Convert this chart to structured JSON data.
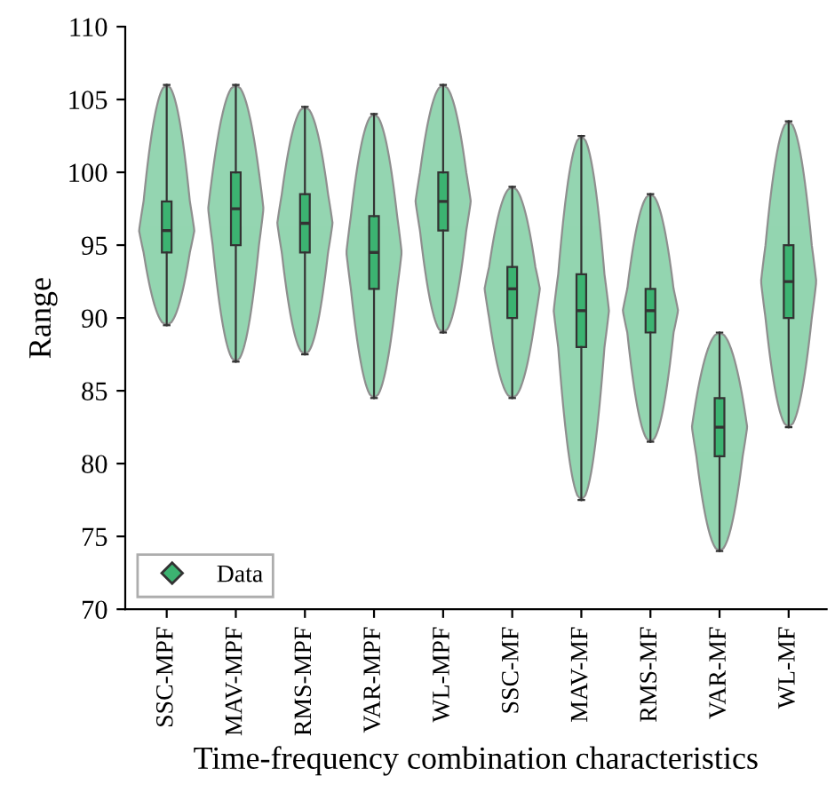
{
  "chart_data": {
    "type": "box",
    "xlabel": "Time-frequency combination characteristics",
    "ylabel": "Range",
    "categories": [
      "SSC-MPF",
      "MAV-MPF",
      "RMS-MPF",
      "VAR-MPF",
      "WL-MPF",
      "SSC-MF",
      "MAV-MF",
      "RMS-MF",
      "VAR-MF",
      "WL-MF"
    ],
    "series": [
      {
        "name": "Data",
        "color": "#3cb371",
        "boxes": [
          {
            "low": 89.5,
            "q1": 94.5,
            "median": 96,
            "q3": 98,
            "high": 106
          },
          {
            "low": 87,
            "q1": 95,
            "median": 97.5,
            "q3": 100,
            "high": 106
          },
          {
            "low": 87.5,
            "q1": 94.5,
            "median": 96.5,
            "q3": 98.5,
            "high": 104.5
          },
          {
            "low": 84.5,
            "q1": 92,
            "median": 94.5,
            "q3": 97,
            "high": 104
          },
          {
            "low": 89,
            "q1": 96,
            "median": 98,
            "q3": 100,
            "high": 106
          },
          {
            "low": 84.5,
            "q1": 90,
            "median": 92,
            "q3": 93.5,
            "high": 99
          },
          {
            "low": 77.5,
            "q1": 88,
            "median": 90.5,
            "q3": 93,
            "high": 102.5
          },
          {
            "low": 81.5,
            "q1": 89,
            "median": 90.5,
            "q3": 92,
            "high": 98.5
          },
          {
            "low": 74,
            "q1": 80.5,
            "median": 82.5,
            "q3": 84.5,
            "high": 89
          },
          {
            "low": 82.5,
            "q1": 90,
            "median": 92.5,
            "q3": 95,
            "high": 103.5
          }
        ]
      }
    ],
    "ylim": [
      70,
      110
    ],
    "yticks": [
      70,
      75,
      80,
      85,
      90,
      95,
      100,
      105,
      110
    ],
    "legend": "bottom left",
    "marker": "diamond",
    "grid": false
  }
}
